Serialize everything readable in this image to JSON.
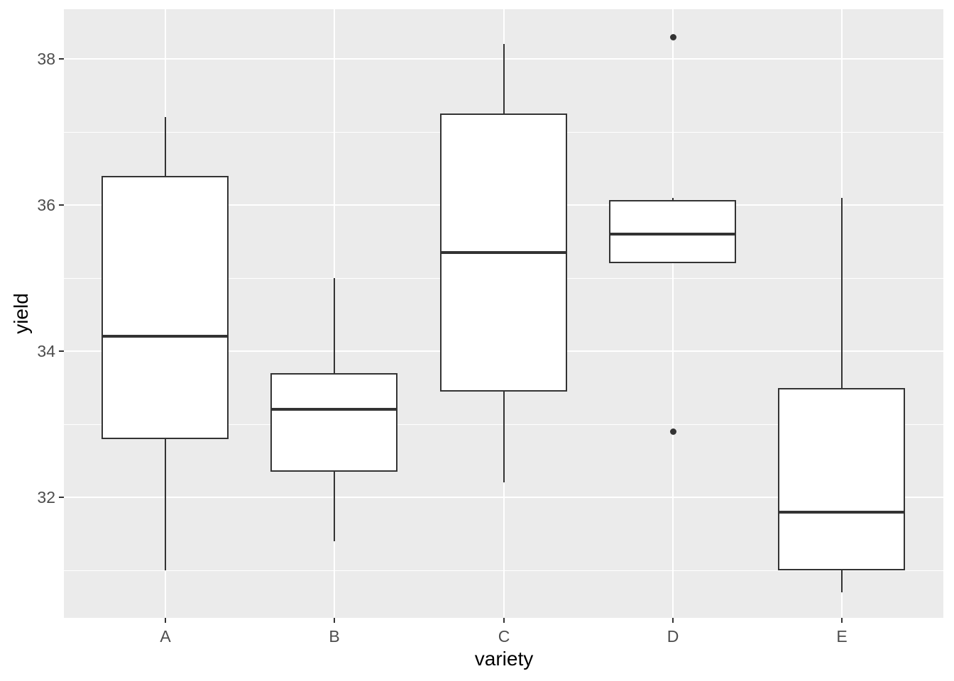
{
  "chart_data": {
    "type": "boxplot",
    "title": "",
    "xlabel": "variety",
    "ylabel": "yield",
    "categories": [
      "A",
      "B",
      "C",
      "D",
      "E"
    ],
    "series": [
      {
        "category": "A",
        "whisker_low": 31.0,
        "q1": 32.8,
        "median": 34.2,
        "q3": 36.4,
        "whisker_high": 37.2,
        "outliers": []
      },
      {
        "category": "B",
        "whisker_low": 31.4,
        "q1": 32.35,
        "median": 33.2,
        "q3": 33.7,
        "whisker_high": 35.0,
        "outliers": []
      },
      {
        "category": "C",
        "whisker_low": 32.2,
        "q1": 33.45,
        "median": 35.35,
        "q3": 37.25,
        "whisker_high": 38.2,
        "outliers": []
      },
      {
        "category": "D",
        "whisker_low": 35.2,
        "q1": 35.2,
        "median": 35.6,
        "q3": 36.07,
        "whisker_high": 36.1,
        "outliers": [
          38.3,
          32.9
        ]
      },
      {
        "category": "E",
        "whisker_low": 30.7,
        "q1": 31.0,
        "median": 31.8,
        "q3": 33.5,
        "whisker_high": 36.1,
        "outliers": []
      }
    ],
    "y_ticks": [
      32,
      34,
      36,
      38
    ],
    "y_tick_labels": [
      "32",
      "34",
      "36",
      "38"
    ],
    "y_minor_ticks": [
      31,
      33,
      35,
      37
    ],
    "ylim": [
      30.35,
      38.68
    ],
    "grid": true,
    "legend": false
  },
  "colors": {
    "panel_background": "#EBEBEB",
    "gridline": "#FFFFFF",
    "box_stroke": "#333333",
    "box_fill": "#FFFFFF",
    "tick_text": "#4D4D4D",
    "axis_title_text": "#000000"
  }
}
